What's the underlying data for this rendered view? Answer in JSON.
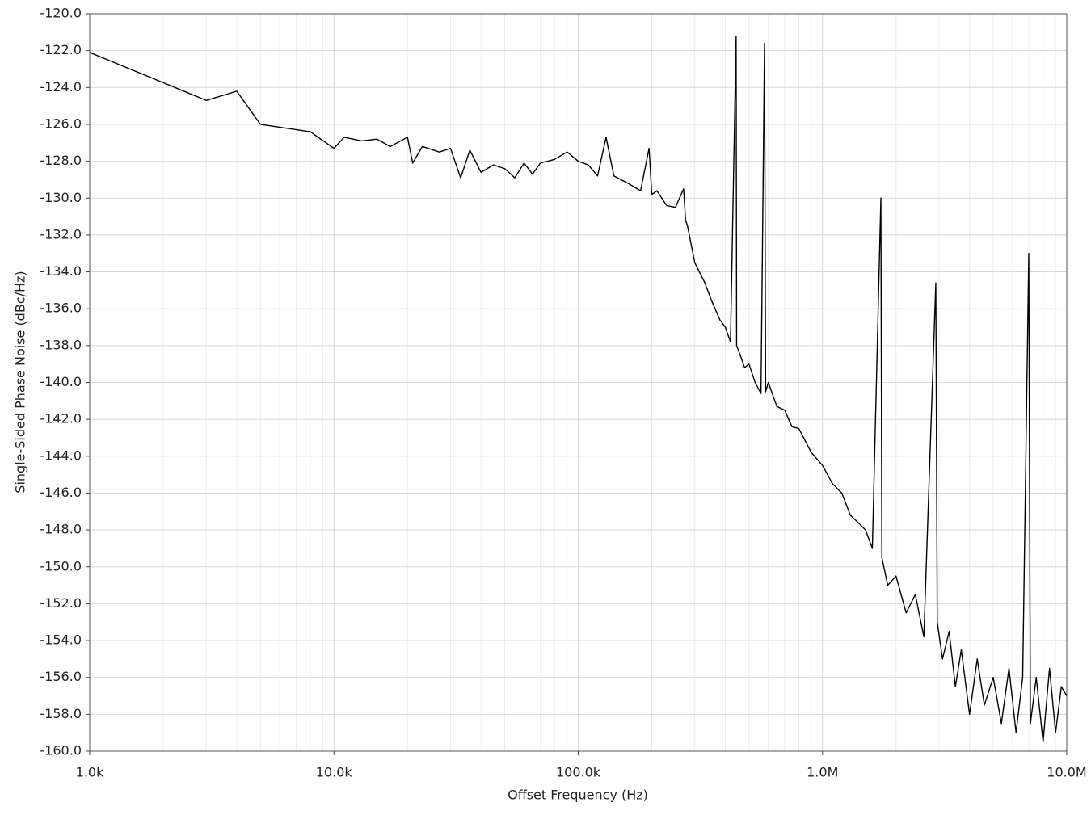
{
  "chart_data": {
    "type": "line",
    "xlabel": "Offset Frequency (Hz)",
    "ylabel": "Single-Sided Phase Noise (dBc/Hz)",
    "xscale": "log",
    "grid": true,
    "color": "#000000",
    "xlim": [
      1000,
      10000000
    ],
    "xticks": [
      {
        "value": 1000,
        "label": "1.0k"
      },
      {
        "value": 10000,
        "label": "10.0k"
      },
      {
        "value": 100000,
        "label": "100.0k"
      },
      {
        "value": 1000000,
        "label": "1.0M"
      },
      {
        "value": 10000000,
        "label": "10.0M"
      }
    ],
    "ylim": [
      -160,
      -120
    ],
    "yticks": [
      {
        "value": -120,
        "label": "-120.0"
      },
      {
        "value": -122,
        "label": "-122.0"
      },
      {
        "value": -124,
        "label": "-124.0"
      },
      {
        "value": -126,
        "label": "-126.0"
      },
      {
        "value": -128,
        "label": "-128.0"
      },
      {
        "value": -130,
        "label": "-130.0"
      },
      {
        "value": -132,
        "label": "-132.0"
      },
      {
        "value": -134,
        "label": "-134.0"
      },
      {
        "value": -136,
        "label": "-136.0"
      },
      {
        "value": -138,
        "label": "-138.0"
      },
      {
        "value": -140,
        "label": "-140.0"
      },
      {
        "value": -142,
        "label": "-142.0"
      },
      {
        "value": -144,
        "label": "-144.0"
      },
      {
        "value": -146,
        "label": "-146.0"
      },
      {
        "value": -148,
        "label": "-148.0"
      },
      {
        "value": -150,
        "label": "-150.0"
      },
      {
        "value": -152,
        "label": "-152.0"
      },
      {
        "value": -154,
        "label": "-154.0"
      },
      {
        "value": -156,
        "label": "-156.0"
      },
      {
        "value": -158,
        "label": "-158.0"
      },
      {
        "value": -160,
        "label": "-160.0"
      }
    ],
    "x": [
      1000,
      3000,
      4000,
      5000,
      8000,
      10000,
      11000,
      13000,
      15000,
      17000,
      20000,
      21000,
      23000,
      27000,
      30000,
      33000,
      36000,
      40000,
      45000,
      50000,
      55000,
      60000,
      65000,
      70000,
      80000,
      90000,
      100000,
      110000,
      120000,
      130000,
      140000,
      160000,
      180000,
      195000,
      200000,
      210000,
      230000,
      250000,
      270000,
      275000,
      280000,
      300000,
      330000,
      350000,
      380000,
      400000,
      420000,
      443000,
      445000,
      460000,
      480000,
      500000,
      530000,
      560000,
      579000,
      585000,
      600000,
      650000,
      700000,
      750000,
      800000,
      900000,
      1000000,
      1100000,
      1200000,
      1300000,
      1400000,
      1500000,
      1600000,
      1734000,
      1750000,
      1850000,
      2000000,
      2200000,
      2400000,
      2600000,
      2910000,
      2950000,
      3100000,
      3300000,
      3500000,
      3700000,
      4000000,
      4300000,
      4600000,
      5000000,
      5400000,
      5800000,
      6200000,
      6600000,
      6990000,
      7100000,
      7500000,
      8000000,
      8500000,
      9000000,
      9500000,
      10000000
    ],
    "values": [
      -122.1,
      -124.7,
      -124.2,
      -126.0,
      -126.4,
      -127.3,
      -126.7,
      -126.9,
      -126.8,
      -127.2,
      -126.7,
      -128.1,
      -127.2,
      -127.5,
      -127.3,
      -128.9,
      -127.4,
      -128.6,
      -128.2,
      -128.4,
      -128.9,
      -128.1,
      -128.7,
      -128.1,
      -127.9,
      -127.5,
      -128.0,
      -128.2,
      -128.8,
      -126.7,
      -128.8,
      -129.2,
      -129.6,
      -127.3,
      -129.8,
      -129.6,
      -130.4,
      -130.5,
      -129.5,
      -131.2,
      -131.5,
      -133.5,
      -134.6,
      -135.5,
      -136.6,
      -137.0,
      -137.8,
      -121.2,
      -138.0,
      -138.5,
      -139.2,
      -139.0,
      -140.0,
      -140.6,
      -121.6,
      -140.5,
      -140.0,
      -141.3,
      -141.5,
      -142.4,
      -142.5,
      -143.8,
      -144.5,
      -145.5,
      -146.0,
      -147.2,
      -147.6,
      -148.0,
      -149.0,
      -130.0,
      -149.5,
      -151.0,
      -150.5,
      -152.5,
      -151.5,
      -153.8,
      -134.6,
      -153.0,
      -155.0,
      -153.5,
      -156.5,
      -154.5,
      -158.0,
      -155.0,
      -157.5,
      -156.0,
      -158.5,
      -155.5,
      -159.0,
      -156.0,
      -133.0,
      -158.5,
      -156.0,
      -159.5,
      -155.5,
      -159.0,
      -156.5,
      -157.0
    ]
  }
}
